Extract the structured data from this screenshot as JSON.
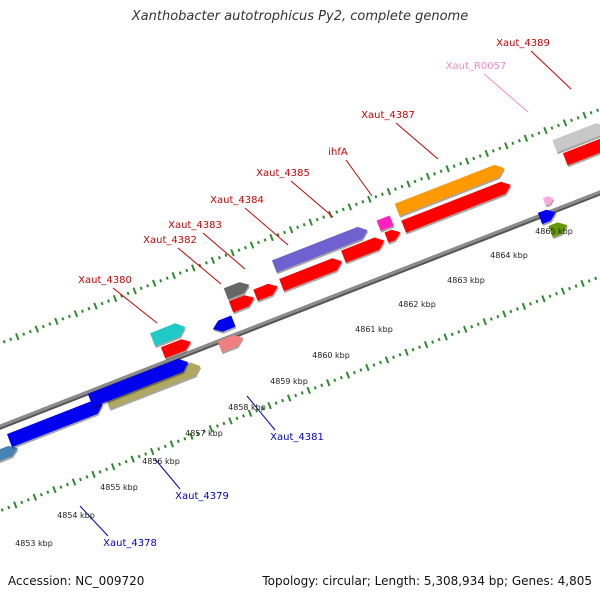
{
  "title": "Xanthobacter autotrophicus Py2, complete genome",
  "footer": {
    "accession": "Accession: NC_009720",
    "summary": "Topology: circular; Length: 5,308,934 bp; Genes: 4,805"
  },
  "colors": {
    "backbone": "#8c8c8c",
    "tick": "#2e8b2e",
    "label_red": "#cc0000",
    "label_blue": "#0000cc",
    "label_pink": "#ff88bb",
    "cds_red": "#ff0000",
    "blue": "#0000ee",
    "steelblue": "#4682b4",
    "khaki": "#b0a860",
    "cyan": "#20c8c8",
    "gray": "#666666",
    "salmon": "#f08080",
    "purple": "#7060d0",
    "magenta": "#ff20c0",
    "orange": "#ff9900",
    "olive": "#669900",
    "lightgray": "#c8c8c8",
    "pink": "#ffaadd"
  },
  "scale": {
    "unit": "kbp",
    "ticks": [
      {
        "label": "4853 kbp"
      },
      {
        "label": "4854 kbp"
      },
      {
        "label": "4855 kbp"
      },
      {
        "label": "4856 kbp"
      },
      {
        "label": "4857 kbp"
      },
      {
        "label": "4858 kbp"
      },
      {
        "label": "4859 kbp"
      },
      {
        "label": "4860 kbp"
      },
      {
        "label": "4861 kbp"
      },
      {
        "label": "4862 kbp"
      },
      {
        "label": "4863 kbp"
      },
      {
        "label": "4864 kbp"
      },
      {
        "label": "4865 kbp"
      }
    ]
  },
  "features": {
    "upper_labels": [
      {
        "name": "Xaut_4380",
        "color": "label_red"
      },
      {
        "name": "Xaut_4382",
        "color": "label_red"
      },
      {
        "name": "Xaut_4383",
        "color": "label_red"
      },
      {
        "name": "Xaut_4384",
        "color": "label_red"
      },
      {
        "name": "Xaut_4385",
        "color": "label_red"
      },
      {
        "name": "ihfA",
        "color": "label_red"
      },
      {
        "name": "Xaut_4387",
        "color": "label_red"
      },
      {
        "name": "Xaut_R0057",
        "color": "label_pink"
      },
      {
        "name": "Xaut_4389",
        "color": "label_red"
      }
    ],
    "lower_labels": [
      {
        "name": "Xaut_4381",
        "color": "label_blue"
      },
      {
        "name": "Xaut_4379",
        "color": "label_blue"
      },
      {
        "name": "Xaut_4378",
        "color": "label_blue"
      }
    ]
  }
}
